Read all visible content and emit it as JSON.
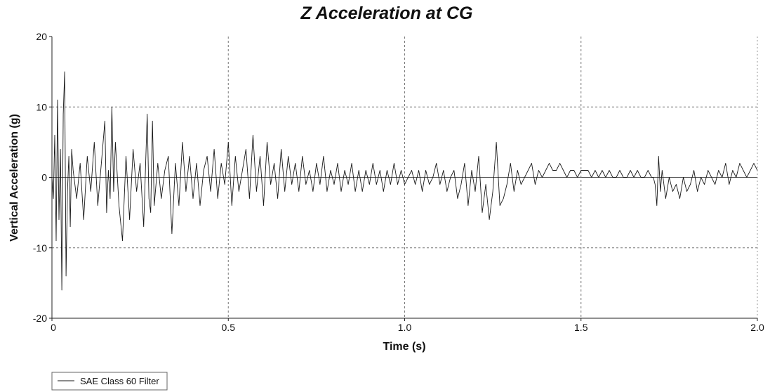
{
  "chart_data": {
    "type": "line",
    "title": "Z Acceleration at CG",
    "xlabel": "Time (s)",
    "ylabel": "Vertical Acceleration (g)",
    "xlim": [
      0,
      2.0
    ],
    "ylim": [
      -20,
      20
    ],
    "x_ticks": [
      {
        "value": 0,
        "label": "0"
      },
      {
        "value": 0.5,
        "label": "0.5"
      },
      {
        "value": 1.0,
        "label": "1.0"
      },
      {
        "value": 1.5,
        "label": "1.5"
      },
      {
        "value": 2.0,
        "label": "2.0"
      }
    ],
    "y_ticks": [
      {
        "value": -20,
        "label": "-20"
      },
      {
        "value": -10,
        "label": "-10"
      },
      {
        "value": 0,
        "label": "0"
      },
      {
        "value": 10,
        "label": "10"
      },
      {
        "value": 20,
        "label": "20"
      }
    ],
    "grid": true,
    "legend_position": "bottom-left",
    "line_color": "#1a1a1a",
    "series": [
      {
        "name": "SAE Class 60 Filter",
        "x": [
          0.0,
          0.004,
          0.008,
          0.012,
          0.016,
          0.02,
          0.024,
          0.028,
          0.032,
          0.036,
          0.04,
          0.044,
          0.048,
          0.052,
          0.056,
          0.06,
          0.07,
          0.08,
          0.09,
          0.1,
          0.11,
          0.12,
          0.13,
          0.14,
          0.15,
          0.155,
          0.16,
          0.165,
          0.17,
          0.175,
          0.18,
          0.19,
          0.2,
          0.21,
          0.22,
          0.23,
          0.24,
          0.25,
          0.26,
          0.27,
          0.275,
          0.28,
          0.285,
          0.29,
          0.3,
          0.31,
          0.32,
          0.33,
          0.34,
          0.35,
          0.36,
          0.37,
          0.38,
          0.39,
          0.4,
          0.41,
          0.42,
          0.43,
          0.44,
          0.45,
          0.46,
          0.47,
          0.48,
          0.49,
          0.5,
          0.51,
          0.52,
          0.53,
          0.54,
          0.55,
          0.56,
          0.57,
          0.58,
          0.59,
          0.6,
          0.61,
          0.62,
          0.63,
          0.64,
          0.65,
          0.66,
          0.67,
          0.68,
          0.69,
          0.7,
          0.71,
          0.72,
          0.73,
          0.74,
          0.75,
          0.76,
          0.77,
          0.78,
          0.79,
          0.8,
          0.81,
          0.82,
          0.83,
          0.84,
          0.85,
          0.86,
          0.87,
          0.88,
          0.89,
          0.9,
          0.91,
          0.92,
          0.93,
          0.94,
          0.95,
          0.96,
          0.97,
          0.98,
          0.99,
          1.0,
          1.01,
          1.02,
          1.03,
          1.04,
          1.05,
          1.06,
          1.07,
          1.08,
          1.09,
          1.1,
          1.11,
          1.12,
          1.13,
          1.14,
          1.15,
          1.16,
          1.17,
          1.18,
          1.19,
          1.2,
          1.21,
          1.22,
          1.23,
          1.24,
          1.25,
          1.26,
          1.27,
          1.28,
          1.29,
          1.3,
          1.31,
          1.32,
          1.33,
          1.34,
          1.35,
          1.36,
          1.37,
          1.38,
          1.39,
          1.4,
          1.41,
          1.42,
          1.43,
          1.44,
          1.45,
          1.46,
          1.47,
          1.48,
          1.49,
          1.5,
          1.51,
          1.52,
          1.53,
          1.54,
          1.55,
          1.56,
          1.57,
          1.58,
          1.59,
          1.6,
          1.61,
          1.62,
          1.63,
          1.64,
          1.65,
          1.66,
          1.67,
          1.68,
          1.69,
          1.7,
          1.705,
          1.71,
          1.715,
          1.72,
          1.725,
          1.73,
          1.74,
          1.75,
          1.76,
          1.77,
          1.78,
          1.79,
          1.8,
          1.81,
          1.82,
          1.83,
          1.84,
          1.85,
          1.86,
          1.87,
          1.88,
          1.89,
          1.9,
          1.91,
          1.92,
          1.93,
          1.94,
          1.95,
          1.96,
          1.97,
          1.98,
          1.99,
          2.0
        ],
        "y": [
          0,
          -3,
          6,
          -9,
          11,
          -6,
          4,
          -16,
          9,
          15,
          -14,
          -2,
          3,
          -7,
          4,
          1,
          -3,
          2,
          -6,
          3,
          -2,
          5,
          -4,
          2,
          8,
          -5,
          1,
          -3,
          10,
          -2,
          5,
          -4,
          -9,
          3,
          -6,
          4,
          -2,
          2,
          -7,
          9,
          -3,
          -5,
          8,
          -4,
          2,
          -3,
          1,
          3,
          -8,
          2,
          -4,
          5,
          -2,
          3,
          -3,
          2,
          -4,
          1,
          3,
          -2,
          4,
          -3,
          2,
          -1,
          5,
          -4,
          3,
          -2,
          1,
          4,
          -3,
          6,
          -2,
          3,
          -4,
          5,
          -1,
          2,
          -3,
          4,
          -2,
          3,
          -1,
          2,
          -2,
          3,
          -1,
          1,
          -2,
          2,
          -1,
          3,
          -2,
          1,
          -1,
          2,
          -2,
          1,
          -1,
          2,
          -2,
          1,
          -2,
          1,
          -1,
          2,
          -1,
          1,
          -2,
          1,
          -1,
          2,
          -1,
          1,
          -1,
          0,
          1,
          -1,
          1,
          -2,
          1,
          -1,
          0,
          2,
          -1,
          1,
          -2,
          0,
          1,
          -3,
          -1,
          2,
          -4,
          1,
          -2,
          3,
          -5,
          -1,
          -6,
          -2,
          5,
          -4,
          -3,
          -1,
          2,
          -2,
          1,
          -1,
          0,
          1,
          2,
          -1,
          1,
          0,
          1,
          2,
          1,
          1,
          2,
          1,
          0,
          1,
          1,
          0,
          1,
          1,
          1,
          0,
          1,
          0,
          1,
          0,
          1,
          0,
          0,
          1,
          0,
          0,
          1,
          0,
          1,
          0,
          0,
          1,
          0,
          0,
          -1,
          -4,
          3,
          -2,
          1,
          -3,
          0,
          -2,
          -1,
          -3,
          0,
          -2,
          -1,
          1,
          -2,
          0,
          -1,
          1,
          0,
          -1,
          1,
          0,
          2,
          -1,
          1,
          0,
          2,
          1,
          0,
          1,
          2,
          1
        ]
      }
    ]
  }
}
